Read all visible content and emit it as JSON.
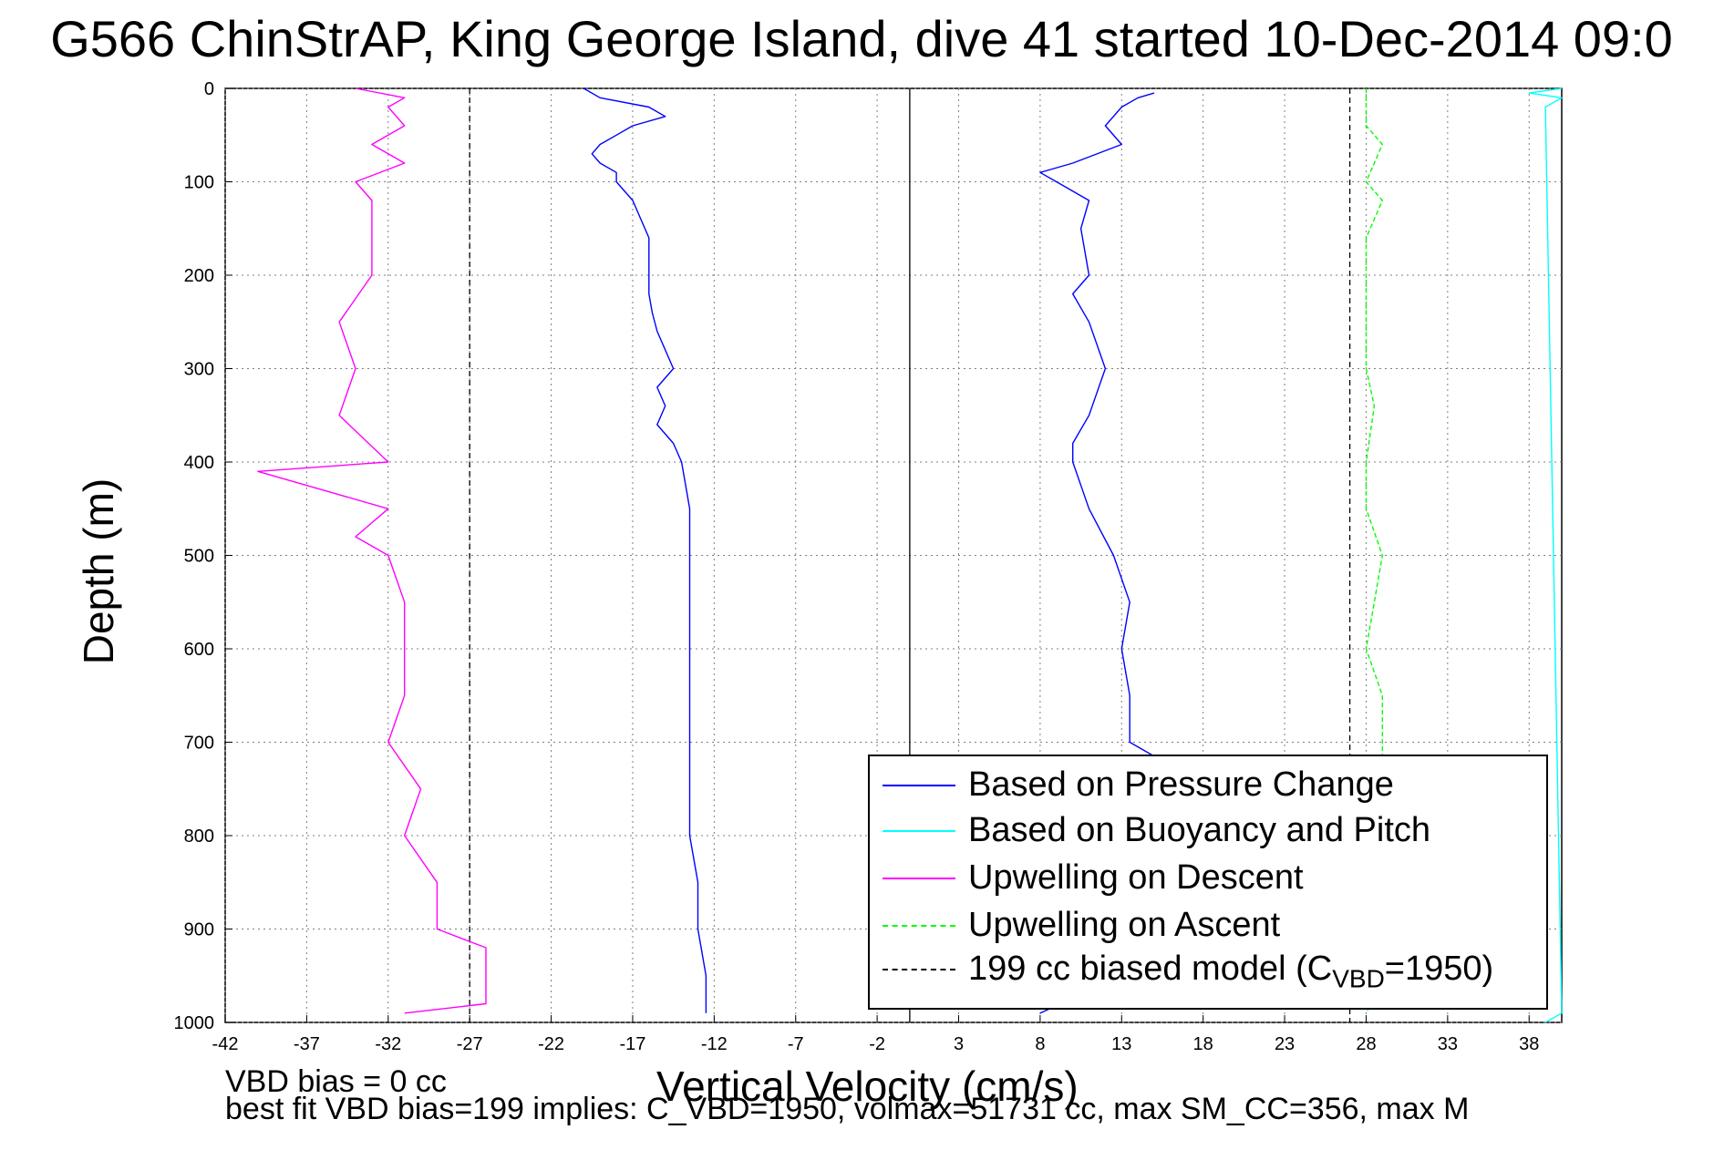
{
  "chart_data": {
    "type": "line",
    "title": "G566 ChinStrAP, King George Island, dive 41 started 10-Dec-2014 09:0",
    "xlabel": "Vertical Velocity (cm/s)",
    "ylabel": "Depth (m)",
    "xlim": [
      -42,
      40
    ],
    "ylim": [
      1000,
      0
    ],
    "y_reversed": true,
    "x_ticks": [
      -42,
      -37,
      -32,
      -27,
      -22,
      -17,
      -12,
      -7,
      -2,
      3,
      8,
      13,
      18,
      23,
      28,
      33,
      38
    ],
    "y_ticks": [
      0,
      100,
      200,
      300,
      400,
      500,
      600,
      700,
      800,
      900,
      1000
    ],
    "grid": true,
    "legend_position": "bottom-right",
    "reference_lines": [
      {
        "orientation": "vertical",
        "x": 0,
        "style": "solid",
        "color": "#000000"
      },
      {
        "orientation": "vertical",
        "x": -27,
        "style": "dashed",
        "color": "#000000"
      },
      {
        "orientation": "vertical",
        "x": 27,
        "style": "dashed",
        "color": "#000000"
      }
    ],
    "series": [
      {
        "name": "Based on Pressure Change",
        "color": "#0000ff",
        "style": "solid",
        "depth": [
          0,
          10,
          20,
          30,
          40,
          50,
          60,
          70,
          80,
          90,
          100,
          120,
          140,
          160,
          180,
          200,
          220,
          240,
          260,
          280,
          300,
          320,
          340,
          360,
          380,
          400,
          450,
          500,
          550,
          600,
          650,
          700,
          750,
          800,
          850,
          900,
          950,
          990
        ],
        "x": [
          -20,
          -19,
          -16,
          -15,
          -17,
          -18,
          -19,
          -19.5,
          -19,
          -18,
          -18,
          -17,
          -16.5,
          -16,
          -16,
          -16,
          -16,
          -15.8,
          -15.5,
          -15,
          -14.5,
          -15.5,
          -15,
          -15.5,
          -14.5,
          -14,
          -13.5,
          -13.5,
          -13.5,
          -13.5,
          -13.5,
          -13.5,
          -13.5,
          -13.5,
          -13,
          -13,
          -12.5,
          -12.5
        ]
      },
      {
        "name": "Based on Pressure Change",
        "color": "#0000ff",
        "style": "solid",
        "depth": [
          990,
          950,
          900,
          850,
          800,
          750,
          715,
          700,
          650,
          600,
          550,
          500,
          450,
          400,
          380,
          350,
          300,
          250,
          220,
          200,
          150,
          120,
          100,
          90,
          80,
          60,
          40,
          20,
          10,
          5
        ],
        "x": [
          8,
          13,
          13,
          13,
          13,
          13,
          15,
          13.5,
          13.5,
          13,
          13.5,
          12.5,
          11,
          10,
          10,
          11,
          12,
          11,
          10,
          11,
          10.5,
          11,
          9,
          8,
          10,
          13,
          12,
          13,
          14,
          15
        ]
      },
      {
        "name": "Based on Buoyancy and Pitch",
        "color": "#00ffff",
        "style": "solid",
        "depth": [
          0,
          5,
          10,
          20,
          990,
          1000
        ],
        "x": [
          40,
          38,
          40,
          39,
          40,
          39
        ]
      },
      {
        "name": "Upwelling on Descent",
        "color": "#ff00ff",
        "style": "solid",
        "depth": [
          0,
          10,
          20,
          40,
          60,
          80,
          100,
          120,
          150,
          200,
          250,
          300,
          350,
          400,
          410,
          450,
          480,
          500,
          550,
          600,
          650,
          700,
          750,
          800,
          850,
          900,
          920,
          950,
          980,
          990
        ],
        "x": [
          -34,
          -31,
          -32,
          -31,
          -33,
          -31,
          -34,
          -33,
          -33,
          -33,
          -35,
          -34,
          -35,
          -32,
          -40,
          -32,
          -34,
          -32,
          -31,
          -31,
          -31,
          -32,
          -30,
          -31,
          -29,
          -29,
          -26,
          -26,
          -26,
          -31
        ]
      },
      {
        "name": "Upwelling on Ascent",
        "color": "#00ff00",
        "style": "dashed",
        "depth": [
          0,
          20,
          40,
          60,
          100,
          120,
          160,
          200,
          240,
          280,
          300,
          340,
          400,
          450,
          500,
          550,
          600,
          650,
          700,
          750,
          800,
          850,
          900,
          950,
          990
        ],
        "x": [
          28,
          28,
          28,
          29,
          28,
          29,
          28,
          28,
          28,
          28,
          28,
          28.5,
          28,
          28,
          29,
          28.5,
          28,
          29,
          29,
          29,
          29,
          29,
          29,
          29,
          28
        ]
      },
      {
        "name": "199 cc biased model (C_VBD=1950)",
        "color": "#000000",
        "style": "dashed",
        "depth": [],
        "x": []
      }
    ],
    "legend": [
      {
        "label": "Based on Pressure Change",
        "color": "#0000ff",
        "style": "solid"
      },
      {
        "label": "Based on Buoyancy and Pitch",
        "color": "#00ffff",
        "style": "solid"
      },
      {
        "label": "Upwelling on Descent",
        "color": "#ff00ff",
        "style": "solid"
      },
      {
        "label": "Upwelling on Ascent",
        "color": "#00ff00",
        "style": "dashed"
      },
      {
        "label_prefix": "199 cc biased model (C",
        "label_sub": "VBD",
        "label_suffix": "=1950)",
        "color": "#000000",
        "style": "dashed"
      }
    ]
  },
  "annotations": {
    "note1": "VBD bias = 0 cc",
    "note2": "best fit VBD bias=199 implies: C_VBD=1950, volmax=51731 cc, max SM_CC=356, max M"
  }
}
